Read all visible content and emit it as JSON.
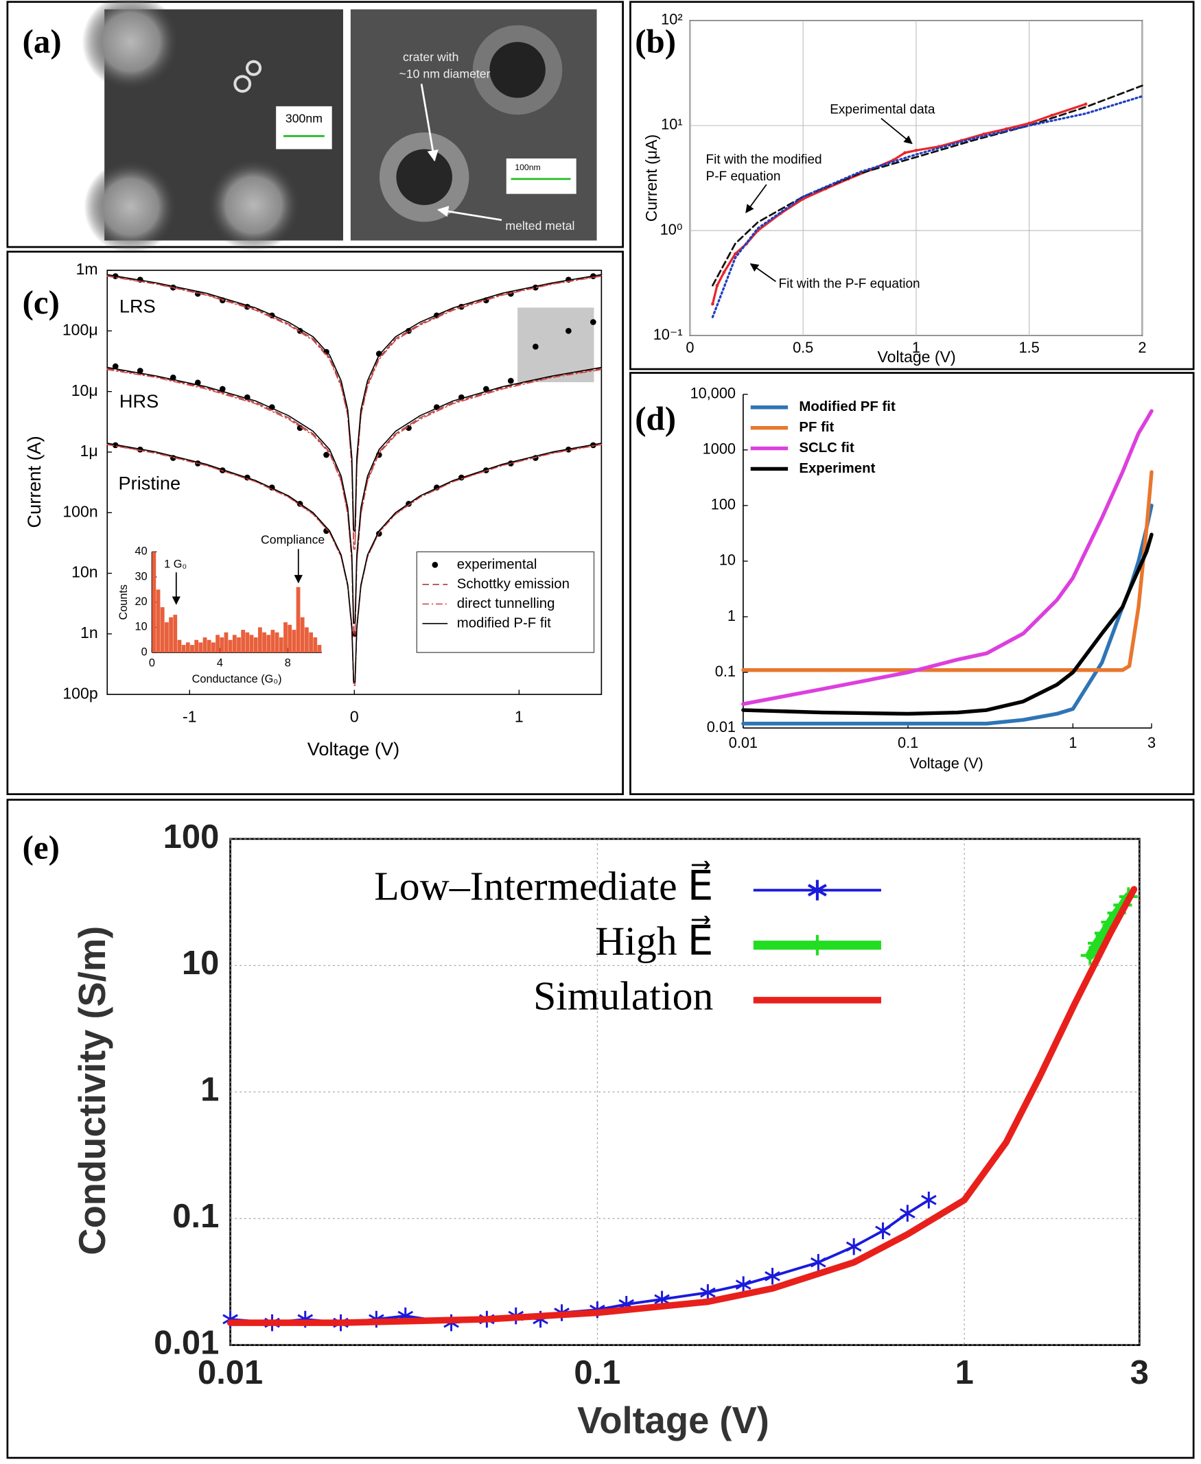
{
  "micrograph": {
    "panel_label": "(a)",
    "left_scale_bar": "300nm",
    "right_scale_bar": "100nm",
    "crater_annotation": [
      "crater with",
      "~10 nm diameter"
    ],
    "melt_annotation": "melted metal"
  },
  "chart_data": [
    {
      "type": "line",
      "panel_label": "(b)",
      "x_label": "Voltage (V)",
      "y_label": "Current (μA)",
      "ylog": true,
      "grid": true,
      "xlim": [
        0,
        2
      ],
      "ylim": [
        0.1,
        100
      ],
      "xticks": [
        0,
        0.5,
        1,
        1.5,
        2
      ],
      "yticks": [
        {
          "value": 0.1,
          "label": "10⁻¹"
        },
        {
          "value": 1,
          "label": "10⁰"
        },
        {
          "value": 10,
          "label": "10¹"
        },
        {
          "value": 100,
          "label": "10²"
        }
      ],
      "annotations": [
        "Experimental data",
        "Fit with the modified",
        "P-F equation",
        "Fit with the P-F equation"
      ],
      "series": [
        {
          "color": "#e8262a",
          "style": "marker",
          "x": [
            0.1,
            0.12,
            0.15,
            0.2,
            0.25,
            0.3,
            0.4,
            0.5,
            0.6,
            0.7,
            0.8,
            0.9,
            0.95,
            1,
            1.1,
            1.2,
            1.3,
            1.4,
            1.5,
            1.6,
            1.75
          ],
          "values": [
            0.2,
            0.3,
            0.4,
            0.6,
            0.75,
            1,
            1.45,
            2,
            2.5,
            3.1,
            3.8,
            4.7,
            5.5,
            5.8,
            6.3,
            7.2,
            8.3,
            9.3,
            10.5,
            12.5,
            16
          ]
        },
        {
          "color": "#111111",
          "style": "dashed",
          "x": [
            0.1,
            0.2,
            0.3,
            0.5,
            0.75,
            1,
            1.25,
            1.5,
            1.75,
            2
          ],
          "values": [
            0.3,
            0.75,
            1.2,
            2.1,
            3.5,
            5,
            7.2,
            10,
            15,
            24
          ]
        },
        {
          "color": "#1f3fbf",
          "style": "dotted",
          "x": [
            0.1,
            0.2,
            0.3,
            0.5,
            0.75,
            1,
            1.25,
            1.5,
            1.75,
            2
          ],
          "values": [
            0.15,
            0.55,
            1.05,
            2.1,
            3.6,
            5.3,
            7.5,
            10,
            13,
            19
          ]
        }
      ]
    },
    {
      "type": "line",
      "panel_label": "(c)",
      "x_label": "Voltage (V)",
      "y_label": "Current (A)",
      "ylog": true,
      "xlim": [
        -1.5,
        1.5
      ],
      "ylim": [
        1e-10,
        0.001
      ],
      "xticks": [
        -1,
        0,
        1
      ],
      "yticks": [
        {
          "value": 1e-10,
          "label": "100p"
        },
        {
          "value": 1e-09,
          "label": "1n"
        },
        {
          "value": 1e-08,
          "label": "10n"
        },
        {
          "value": 1e-07,
          "label": "100n"
        },
        {
          "value": 1e-06,
          "label": "1μ"
        },
        {
          "value": 1e-05,
          "label": "10μ"
        },
        {
          "value": 0.0001,
          "label": "100μ"
        },
        {
          "value": 0.001,
          "label": "1m"
        }
      ],
      "state_labels": [
        "LRS",
        "HRS",
        "Pristine"
      ],
      "x": [
        -1.5,
        -1.2,
        -0.9,
        -0.6,
        -0.4,
        -0.25,
        -0.15,
        -0.08,
        -0.04,
        -0.015,
        -0.004,
        0.004,
        0.015,
        0.04,
        0.08,
        0.15,
        0.25,
        0.4,
        0.6,
        0.9,
        1.2,
        1.5
      ],
      "series": [
        {
          "name": "experimental",
          "color": "#000000",
          "style": "points",
          "x": [
            -1.45,
            -1.3,
            -1.1,
            -0.95,
            -0.8,
            -0.65,
            -0.5,
            -0.33,
            -0.17,
            0,
            0.15,
            0.33,
            0.5,
            0.65,
            0.8,
            0.95,
            1.1,
            1.3,
            1.45
          ],
          "values": [
            [
              0.0008,
              0.0007,
              0.00052,
              0.00041,
              0.00032,
              0.00025,
              0.00018,
              0.0001,
              4.5e-05,
              null,
              4.2e-05,
              0.0001,
              0.00018,
              0.00025,
              0.00032,
              0.00041,
              0.00052,
              0.0007,
              0.0008
            ],
            [
              2.6e-05,
              2.2e-05,
              1.7e-05,
              1.4e-05,
              1.1e-05,
              8e-06,
              5.5e-06,
              2.5e-06,
              9e-07,
              null,
              9e-07,
              2.5e-06,
              5.5e-06,
              8e-06,
              1.1e-05,
              1.5e-05,
              5.5e-05,
              0.0001,
              0.00014
            ],
            [
              1.3e-06,
              1.1e-06,
              8e-07,
              6.5e-07,
              5e-07,
              3.8e-07,
              2.6e-07,
              1.4e-07,
              5e-08,
              1e-09,
              4.5e-08,
              1.4e-07,
              2.6e-07,
              3.8e-07,
              5e-07,
              6.5e-07,
              8e-07,
              1.1e-06,
              1.3e-06
            ]
          ]
        },
        {
          "name": "Schottky emission",
          "color": "#a83a3a",
          "style": "dashed",
          "values": [
            [
              0.00082,
              0.0006,
              0.0004,
              0.00023,
              0.00013,
              7.4e-05,
              3.6e-05,
              1.3e-05,
              4.2e-06,
              6e-07,
              3e-08,
              3e-08,
              6e-07,
              4.2e-06,
              1.3e-05,
              3.6e-05,
              7.4e-05,
              0.00013,
              0.00023,
              0.0004,
              0.0006,
              0.00082
            ],
            [
              2.4e-05,
              1.75e-05,
              1.15e-05,
              6.6e-06,
              3.7e-06,
              2e-06,
              1e-06,
              3.5e-07,
              1e-07,
              1.6e-08,
              1e-09,
              1e-09,
              1.6e-08,
              1e-07,
              3.5e-07,
              1e-06,
              2e-06,
              3.7e-06,
              6.6e-06,
              1.15e-05,
              1.75e-05,
              2.4e-05
            ],
            [
              1.35e-06,
              9.7e-07,
              6.1e-07,
              3.3e-07,
              1.85e-07,
              9.6e-08,
              4.8e-08,
              1.9e-08,
              6.2e-09,
              1.2e-09,
              1.5e-10,
              1.5e-10,
              1.2e-09,
              6.2e-09,
              1.9e-08,
              4.8e-08,
              9.6e-08,
              1.85e-07,
              3.3e-07,
              6.1e-07,
              9.7e-07,
              1.35e-06
            ]
          ]
        },
        {
          "name": "direct tunnelling",
          "color": "#d04848",
          "style": "dashdot",
          "values": [
            [
              0.0008,
              0.00059,
              0.00039,
              0.00022,
              0.000125,
              7e-05,
              3.4e-05,
              1.2e-05,
              4e-06,
              5.5e-07,
              2.5e-08,
              2.5e-08,
              5.5e-07,
              4e-06,
              1.2e-05,
              3.4e-05,
              7e-05,
              0.000125,
              0.00022,
              0.00039,
              0.00059,
              0.0008
            ],
            [
              2.3e-05,
              1.7e-05,
              1.1e-05,
              6.3e-06,
              3.5e-06,
              1.9e-06,
              9.5e-07,
              3.3e-07,
              9.5e-08,
              1.5e-08,
              9e-10,
              9e-10,
              1.5e-08,
              9.5e-08,
              3.3e-07,
              9.5e-07,
              1.9e-06,
              3.5e-06,
              6.3e-06,
              1.1e-05,
              1.7e-05,
              2.3e-05
            ],
            [
              1.33e-06,
              9.5e-07,
              6e-07,
              3.25e-07,
              1.8e-07,
              9.4e-08,
              4.7e-08,
              1.85e-08,
              6e-09,
              1.15e-09,
              1.4e-10,
              1.4e-10,
              1.15e-09,
              6e-09,
              1.85e-08,
              4.7e-08,
              9.4e-08,
              1.8e-07,
              3.25e-07,
              6e-07,
              9.5e-07,
              1.33e-06
            ]
          ]
        },
        {
          "name": "modified P-F fit",
          "color": "#000000",
          "style": "solid",
          "values": [
            [
              0.00085,
              0.00062,
              0.00042,
              0.00024,
              0.00014,
              8e-05,
              4e-05,
              1.5e-05,
              5e-06,
              8e-07,
              5e-08,
              5e-08,
              8e-07,
              5e-06,
              1.5e-05,
              4e-05,
              8e-05,
              0.00014,
              0.00024,
              0.00042,
              0.00062,
              0.00085
            ],
            [
              2.5e-05,
              1.8e-05,
              1.2e-05,
              7e-06,
              4e-06,
              2.2e-06,
              1.1e-06,
              4e-07,
              1.2e-07,
              2e-08,
              1.5e-09,
              1.5e-09,
              2e-08,
              1.2e-07,
              4e-07,
              1.1e-06,
              2.2e-06,
              4e-06,
              7e-06,
              1.2e-05,
              1.8e-05,
              2.5e-05
            ],
            [
              1.4e-06,
              1e-06,
              6.3e-07,
              3.4e-07,
              1.9e-07,
              1e-07,
              5e-08,
              2e-08,
              6.5e-09,
              1.3e-09,
              1.6e-10,
              1.6e-10,
              1.3e-09,
              6.5e-09,
              2e-08,
              5e-08,
              1e-07,
              1.9e-07,
              3.4e-07,
              6.3e-07,
              1e-06,
              1.4e-06
            ]
          ]
        }
      ]
    },
    {
      "type": "histogram",
      "x_label": "Conductance (G₀)",
      "y_label": "Counts",
      "annotations": [
        "1 G₀",
        "Compliance"
      ],
      "color": "#e8603c",
      "xlim": [
        0,
        10
      ],
      "ylim": [
        0,
        40
      ],
      "xticks": [
        0,
        4,
        8
      ],
      "yticks": [
        0,
        10,
        20,
        30,
        40
      ],
      "bins": [
        0,
        0.25,
        0.5,
        0.75,
        1,
        1.25,
        1.5,
        1.75,
        2,
        2.25,
        2.5,
        2.75,
        3,
        3.25,
        3.5,
        3.75,
        4,
        4.25,
        4.5,
        4.75,
        5,
        5.25,
        5.5,
        5.75,
        6,
        6.25,
        6.5,
        6.75,
        7,
        7.25,
        7.5,
        7.75,
        8,
        8.25,
        8.5,
        8.75,
        9,
        9.25,
        9.5,
        9.75,
        10
      ],
      "values": [
        40,
        25,
        18,
        12,
        14,
        15,
        5,
        3,
        4,
        3,
        5,
        4,
        6,
        5,
        4,
        7,
        6,
        8,
        5,
        7,
        6,
        9,
        8,
        7,
        6,
        10,
        8,
        7,
        9,
        8,
        6,
        12,
        11,
        9,
        26,
        14,
        10,
        8,
        6,
        3
      ]
    },
    {
      "type": "line",
      "panel_label": "(d)",
      "x_label": "Voltage (V)",
      "xlog": true,
      "ylog": true,
      "xlim": [
        0.01,
        3
      ],
      "ylim": [
        0.01,
        10000
      ],
      "xticks": [
        0.01,
        0.1,
        1,
        3
      ],
      "yticks": [
        0.01,
        0.1,
        1,
        10,
        100,
        1000,
        {
          "value": 10000,
          "label": "10,000"
        }
      ],
      "x": [
        0.01,
        0.03,
        0.1,
        0.2,
        0.3,
        0.5,
        0.8,
        1,
        1.5,
        2,
        2.2,
        2.5,
        2.8,
        3
      ],
      "series": [
        {
          "name": "Modified PF fit",
          "color": "#2e75b6",
          "style": "solid",
          "values": [
            0.012,
            0.012,
            0.012,
            0.012,
            0.012,
            0.014,
            0.018,
            0.022,
            0.15,
            1.5,
            3,
            10,
            40,
            100
          ]
        },
        {
          "name": "PF fit",
          "color": "#e8772e",
          "style": "solid",
          "values": [
            0.11,
            0.11,
            0.11,
            0.11,
            0.11,
            0.11,
            0.11,
            0.11,
            0.11,
            0.11,
            0.13,
            1.5,
            40,
            400
          ]
        },
        {
          "name": "SCLC fit",
          "color": "#dd3fdd",
          "style": "solid",
          "values": [
            0.027,
            0.05,
            0.1,
            0.17,
            0.22,
            0.5,
            2,
            5,
            60,
            400,
            800,
            2000,
            3500,
            5000
          ]
        },
        {
          "name": "Experiment",
          "color": "#000000",
          "style": "solid",
          "values": [
            0.021,
            0.019,
            0.018,
            0.019,
            0.021,
            0.03,
            0.06,
            0.1,
            0.5,
            1.5,
            3,
            7,
            15,
            30
          ]
        }
      ]
    },
    {
      "type": "line",
      "panel_label": "(e)",
      "x_label": "Voltage (V)",
      "y_label": "Conductivity (S/m)",
      "xlog": true,
      "ylog": true,
      "grid": true,
      "xlim": [
        0.01,
        3
      ],
      "ylim": [
        0.01,
        100
      ],
      "xticks": [
        0.01,
        0.1,
        1,
        3
      ],
      "yticks": [
        0.01,
        0.1,
        1,
        10,
        100
      ],
      "series": [
        {
          "name": "Low–Intermediate E⃗",
          "color": "#1a1adc",
          "style": "star",
          "x": [
            0.01,
            0.013,
            0.016,
            0.02,
            0.025,
            0.03,
            0.04,
            0.05,
            0.06,
            0.07,
            0.08,
            0.1,
            0.12,
            0.15,
            0.2,
            0.25,
            0.3,
            0.4,
            0.5,
            0.6,
            0.7,
            0.8
          ],
          "values": [
            0.016,
            0.015,
            0.016,
            0.015,
            0.016,
            0.017,
            0.015,
            0.016,
            0.017,
            0.016,
            0.018,
            0.019,
            0.021,
            0.023,
            0.026,
            0.03,
            0.035,
            0.045,
            0.06,
            0.08,
            0.11,
            0.14
          ]
        },
        {
          "name": "High E⃗",
          "color": "#22dd22",
          "style": "plus",
          "x": [
            2.2,
            2.3,
            2.4,
            2.5,
            2.6,
            2.7,
            2.8
          ],
          "values": [
            12,
            15,
            18,
            22,
            26,
            30,
            35
          ]
        },
        {
          "name": "Simulation",
          "color": "#e8201c",
          "style": "solid",
          "x": [
            0.01,
            0.02,
            0.05,
            0.1,
            0.2,
            0.3,
            0.5,
            0.7,
            1,
            1.3,
            1.6,
            2,
            2.5,
            2.9
          ],
          "values": [
            0.015,
            0.015,
            0.016,
            0.018,
            0.022,
            0.028,
            0.045,
            0.075,
            0.14,
            0.4,
            1.3,
            5,
            18,
            40
          ]
        }
      ]
    }
  ]
}
